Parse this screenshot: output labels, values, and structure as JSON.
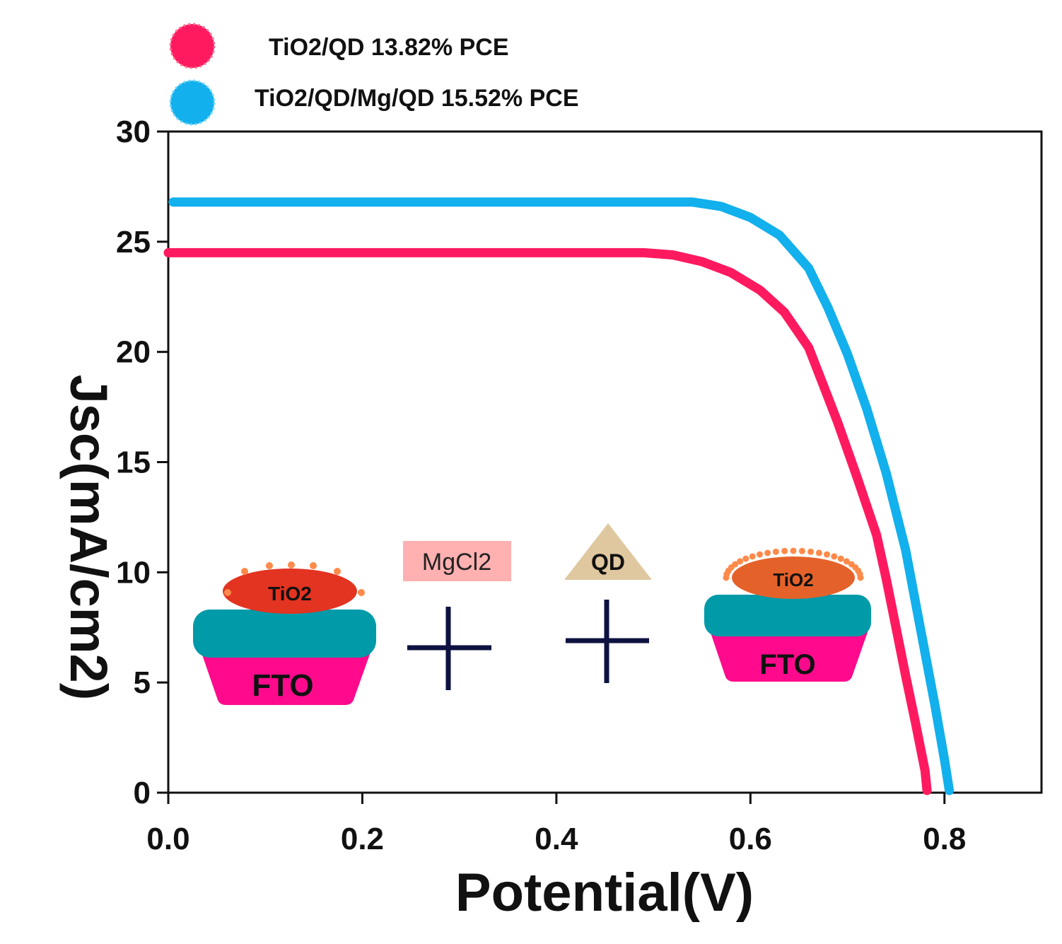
{
  "chart_data": {
    "type": "line",
    "title": "",
    "xlabel": "Potential(V)",
    "ylabel": "Jsc(mA/cm2)",
    "xlim": [
      0.0,
      0.9
    ],
    "ylim": [
      0,
      30
    ],
    "xticks": [
      "0.0",
      "0.2",
      "0.4",
      "0.6",
      "0.8"
    ],
    "xtick_values": [
      0.0,
      0.2,
      0.4,
      0.6,
      0.8
    ],
    "yticks": [
      "0",
      "5",
      "10",
      "15",
      "20",
      "25",
      "30"
    ],
    "ytick_values": [
      0,
      5,
      10,
      15,
      20,
      25,
      30
    ],
    "grid": false,
    "legend_position": "top-left, above plot",
    "series": [
      {
        "name": "TiO2/QD 13.82% PCE",
        "color": "#ff1a60",
        "x": [
          0.0,
          0.1,
          0.2,
          0.3,
          0.4,
          0.45,
          0.49,
          0.52,
          0.55,
          0.58,
          0.61,
          0.635,
          0.66,
          0.675,
          0.69,
          0.71,
          0.73,
          0.74,
          0.75,
          0.76,
          0.77,
          0.78,
          0.782
        ],
        "y": [
          24.5,
          24.5,
          24.5,
          24.5,
          24.5,
          24.5,
          24.5,
          24.4,
          24.1,
          23.6,
          22.8,
          21.8,
          20.2,
          18.5,
          16.8,
          14.3,
          11.7,
          9.7,
          7.5,
          5.3,
          3.2,
          1.0,
          0.1
        ]
      },
      {
        "name": "TiO2/QD/Mg/QD 15.52% PCE",
        "color": "#12b0ec",
        "x": [
          0.005,
          0.1,
          0.2,
          0.3,
          0.4,
          0.5,
          0.54,
          0.57,
          0.6,
          0.63,
          0.66,
          0.68,
          0.7,
          0.72,
          0.74,
          0.76,
          0.775,
          0.79,
          0.8,
          0.805
        ],
        "y": [
          26.8,
          26.8,
          26.8,
          26.8,
          26.8,
          26.8,
          26.8,
          26.6,
          26.1,
          25.3,
          23.8,
          22.0,
          19.9,
          17.4,
          14.5,
          11.0,
          7.5,
          4.0,
          1.5,
          0.1
        ]
      }
    ],
    "annotations": {
      "mgcl2_label": "MgCl2",
      "qd_label": "QD",
      "fto_label": "FTO",
      "tio2_label": "TiO2"
    }
  }
}
